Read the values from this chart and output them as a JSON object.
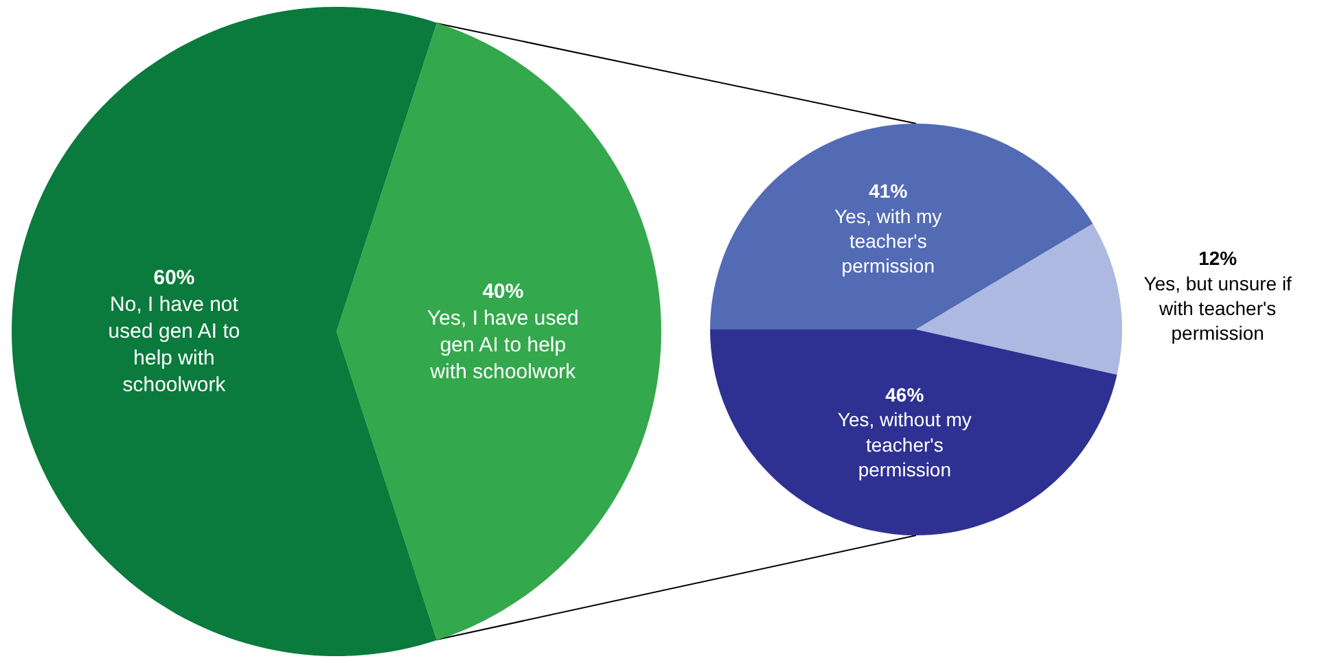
{
  "chart_data": [
    {
      "type": "pie",
      "categories": [
        "Yes, I have used gen AI to help with schoolwork",
        "No, I have not used gen AI to help with schoolwork"
      ],
      "values": [
        40,
        60
      ],
      "value_labels": [
        "40%",
        "60%"
      ],
      "colors": [
        "#33a84c",
        "#0b7a3d"
      ]
    },
    {
      "type": "pie",
      "categories": [
        "Yes, with my teacher's permission",
        "Yes, but unsure if with teacher's permission",
        "Yes, without my teacher's permission"
      ],
      "values": [
        41,
        12,
        46
      ],
      "value_labels": [
        "41%",
        "12%",
        "46%"
      ],
      "colors": [
        "#536bb5",
        "#adb9e0",
        "#2e3192"
      ]
    }
  ]
}
